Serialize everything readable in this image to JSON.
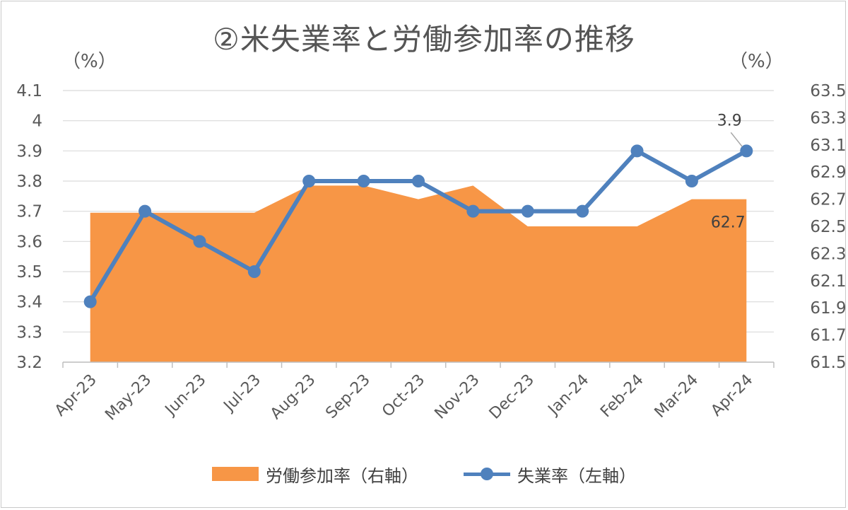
{
  "chart_data": {
    "type": "line",
    "title": "②米失業率と労働参加率の推移",
    "categories": [
      "Apr-23",
      "May-23",
      "Jun-23",
      "Jul-23",
      "Aug-23",
      "Sep-23",
      "Oct-23",
      "Nov-23",
      "Dec-23",
      "Jan-24",
      "Feb-24",
      "Mar-24",
      "Apr-24"
    ],
    "left_axis": {
      "unit": "（%）",
      "ylim": [
        3.2,
        4.1
      ],
      "ticks": [
        "3.2",
        "3.3",
        "3.4",
        "3.5",
        "3.6",
        "3.7",
        "3.8",
        "3.9",
        "4",
        "4.1"
      ]
    },
    "right_axis": {
      "unit": "（%）",
      "ylim": [
        61.5,
        63.5
      ],
      "ticks": [
        "61.5",
        "61.7",
        "61.9",
        "62.1",
        "62.3",
        "62.5",
        "62.7",
        "62.9",
        "63.1",
        "63.3",
        "63.5"
      ]
    },
    "series": [
      {
        "name": "労働参加率（右軸）",
        "type": "area",
        "axis": "right",
        "color": "#F79646",
        "values": [
          62.6,
          62.6,
          62.6,
          62.6,
          62.8,
          62.8,
          62.7,
          62.8,
          62.5,
          62.5,
          62.5,
          62.7,
          62.7
        ],
        "end_label": "62.7"
      },
      {
        "name": "失業率（左軸）",
        "type": "line",
        "axis": "left",
        "color": "#4F81BD",
        "values": [
          3.4,
          3.7,
          3.6,
          3.5,
          3.8,
          3.8,
          3.8,
          3.7,
          3.7,
          3.7,
          3.9,
          3.8,
          3.9
        ],
        "end_label": "3.9"
      }
    ],
    "grid": true,
    "legend_position": "bottom"
  }
}
